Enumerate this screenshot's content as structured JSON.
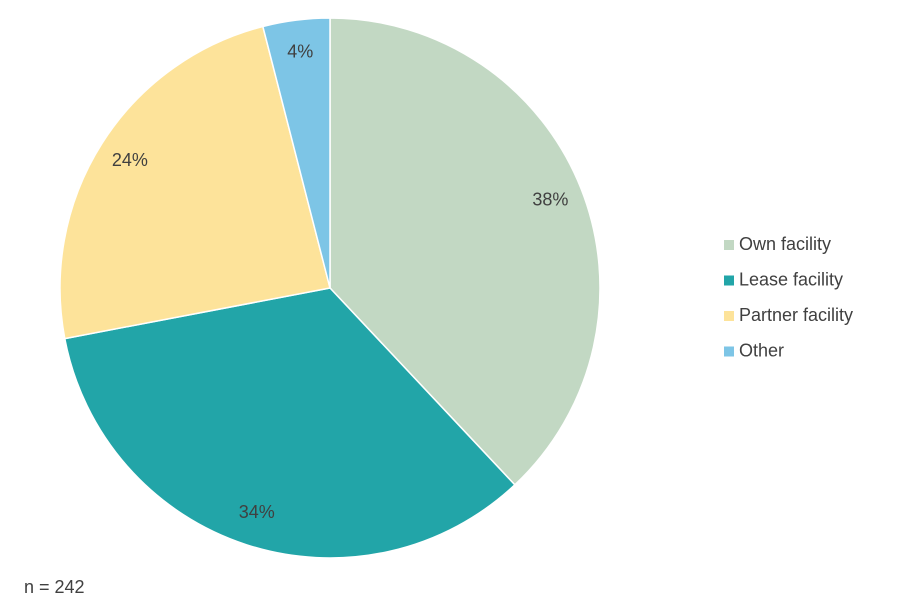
{
  "chart_data": {
    "type": "pie",
    "categories": [
      "Own facility",
      "Lease facility",
      "Partner facility",
      "Other"
    ],
    "values": [
      38,
      34,
      24,
      4
    ],
    "value_labels": [
      "38%",
      "34%",
      "24%",
      "4%"
    ],
    "colors": [
      "#c2d8c3",
      "#22a5a8",
      "#fde39a",
      "#7dc5e6"
    ],
    "legend": "right",
    "note": "n = 242"
  }
}
